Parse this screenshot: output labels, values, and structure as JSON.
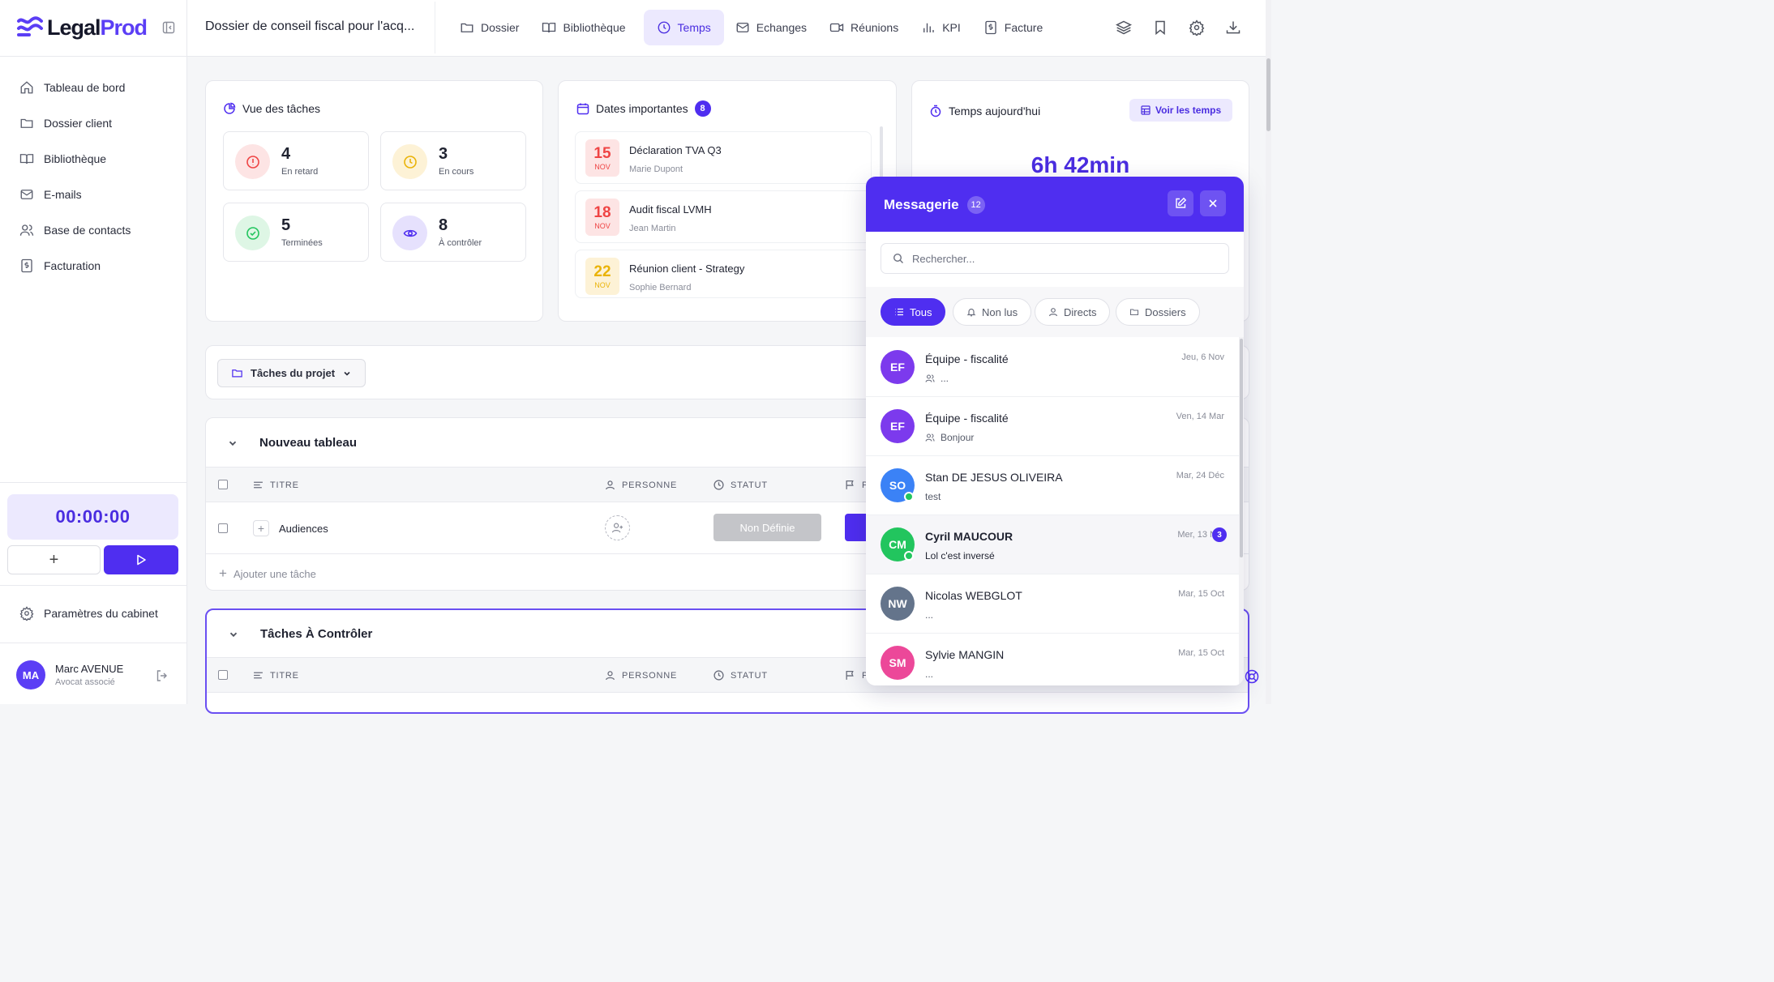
{
  "app": {
    "logo_legal": "Legal",
    "logo_prod": "Prod",
    "brand_color": "#4f2ef0"
  },
  "sidebar": {
    "items": [
      {
        "label": "Tableau de bord",
        "icon": "home-icon"
      },
      {
        "label": "Dossier client",
        "icon": "folder-icon"
      },
      {
        "label": "Bibliothèque",
        "icon": "book-icon"
      },
      {
        "label": "E-mails",
        "icon": "mail-icon"
      },
      {
        "label": "Base de contacts",
        "icon": "users-icon"
      },
      {
        "label": "Facturation",
        "icon": "invoice-icon"
      }
    ],
    "timer": "00:00:00",
    "settings_label": "Paramètres du cabinet",
    "user": {
      "initials": "MA",
      "name": "Marc AVENUE",
      "role": "Avocat associé"
    }
  },
  "header": {
    "dossier_title": "Dossier de conseil fiscal pour l'acq...",
    "tabs": [
      {
        "label": "Dossier",
        "icon": "folder-icon"
      },
      {
        "label": "Bibliothèque",
        "icon": "book-icon"
      },
      {
        "label": "Temps",
        "icon": "clock-icon",
        "active": true
      },
      {
        "label": "Echanges",
        "icon": "mail-icon"
      },
      {
        "label": "Réunions",
        "icon": "video-icon"
      },
      {
        "label": "KPI",
        "icon": "bar-chart-icon"
      },
      {
        "label": "Facture",
        "icon": "invoice-icon"
      }
    ]
  },
  "tasks_overview": {
    "title": "Vue des tâches",
    "stats": [
      {
        "value": "4",
        "label": "En retard",
        "color": "#ef4444"
      },
      {
        "value": "3",
        "label": "En cours",
        "color": "#eab308"
      },
      {
        "value": "5",
        "label": "Terminées",
        "color": "#22c55e"
      },
      {
        "value": "8",
        "label": "À contrôler",
        "color": "#4f2ef0"
      }
    ]
  },
  "important_dates": {
    "title": "Dates importantes",
    "count": "8",
    "items": [
      {
        "day": "15",
        "month": "NOV",
        "event": "Déclaration TVA Q3",
        "person": "Marie Dupont",
        "color": "#ef4444"
      },
      {
        "day": "18",
        "month": "NOV",
        "event": "Audit fiscal LVMH",
        "person": "Jean Martin",
        "color": "#ef4444"
      },
      {
        "day": "22",
        "month": "NOV",
        "event": "Réunion client - Strategy",
        "person": "Sophie Bernard",
        "color": "#eab308"
      }
    ]
  },
  "time_today": {
    "title": "Temps aujourd'hui",
    "button": "Voir les temps",
    "value": "6h 42min"
  },
  "project": {
    "tasks_dropdown": "Tâches du projet",
    "boards": [
      {
        "title": "Nouveau tableau",
        "columns": [
          "TITRE",
          "PERSONNE",
          "STATUT",
          "P"
        ],
        "rows": [
          {
            "title": "Audiences",
            "status": "Non Définie"
          }
        ],
        "add_task": "Ajouter une tâche"
      },
      {
        "title": "Tâches À Contrôler",
        "columns": [
          "TITRE",
          "PERSONNE",
          "STATUT",
          "P"
        ]
      }
    ]
  },
  "messenger": {
    "title": "Messagerie",
    "count": "12",
    "search_placeholder": "Rechercher...",
    "filters": [
      "Tous",
      "Non lus",
      "Directs",
      "Dossiers"
    ],
    "conversations": [
      {
        "initials": "EF",
        "name": "Équipe - fiscalité",
        "preview": "...",
        "time": "Jeu, 6 Nov",
        "color": "#7c3aed",
        "group": true
      },
      {
        "initials": "EF",
        "name": "Équipe - fiscalité",
        "preview": "Bonjour",
        "time": "Ven, 14 Mar",
        "color": "#7c3aed",
        "group": true
      },
      {
        "initials": "SO",
        "name": "Stan DE JESUS OLIVEIRA",
        "preview": "test",
        "time": "Mar, 24 Déc",
        "color": "#3b82f6",
        "online": true
      },
      {
        "initials": "CM",
        "name": "Cyril MAUCOUR",
        "preview": "Lol c'est inversé",
        "time": "Mer, 13 N",
        "color": "#22c55e",
        "online": true,
        "unread": "3"
      },
      {
        "initials": "NW",
        "name": "Nicolas WEBGLOT",
        "preview": "...",
        "time": "Mar, 15 Oct",
        "color": "#64748b"
      },
      {
        "initials": "SM",
        "name": "Sylvie MANGIN",
        "preview": "...",
        "time": "Mar, 15 Oct",
        "color": "#ec4899"
      }
    ]
  }
}
